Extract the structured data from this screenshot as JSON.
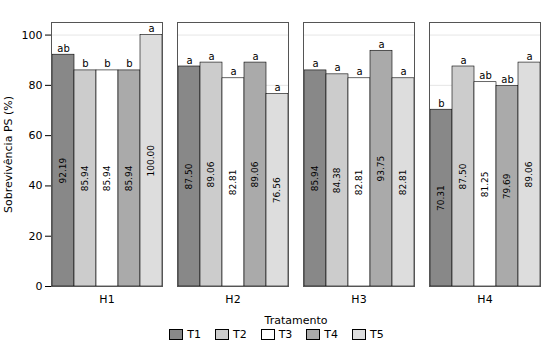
{
  "chart_data": {
    "type": "bar",
    "categories": [
      "H1",
      "H2",
      "H3",
      "H4"
    ],
    "xlabel": "Tratamento",
    "ylabel": "Sobrevivência PS (%)",
    "series": [
      {
        "name": "T1",
        "color": "#888888",
        "values": [
          92.19,
          87.5,
          85.94,
          70.31
        ],
        "value_labels": [
          "92.19",
          "87.50",
          "85.94",
          "70.31"
        ],
        "annotations": [
          "ab",
          "a",
          "a",
          "b"
        ]
      },
      {
        "name": "T2",
        "color": "#cccccc",
        "values": [
          85.94,
          89.06,
          84.38,
          87.5
        ],
        "value_labels": [
          "85.94",
          "89.06",
          "84.38",
          "87.50"
        ],
        "annotations": [
          "b",
          "a",
          "a",
          "a"
        ]
      },
      {
        "name": "T3",
        "color": "#ffffff",
        "values": [
          85.94,
          82.81,
          82.81,
          81.25
        ],
        "value_labels": [
          "85.94",
          "82.81",
          "82.81",
          "81.25"
        ],
        "annotations": [
          "b",
          "a",
          "a",
          "ab"
        ]
      },
      {
        "name": "T4",
        "color": "#aaaaaa",
        "values": [
          85.94,
          89.06,
          93.75,
          79.69
        ],
        "value_labels": [
          "85.94",
          "89.06",
          "93.75",
          "79.69"
        ],
        "annotations": [
          "b",
          "a",
          "a",
          "ab"
        ]
      },
      {
        "name": "T5",
        "color": "#dddddd",
        "values": [
          100.0,
          76.56,
          82.81,
          89.06
        ],
        "value_labels": [
          "100.00",
          "76.56",
          "82.81",
          "89.06"
        ],
        "annotations": [
          "a",
          "a",
          "a",
          "a"
        ]
      }
    ],
    "ylim": [
      0,
      105
    ],
    "yticks": [
      0,
      20,
      40,
      60,
      80,
      100
    ],
    "grid": true,
    "legend": "bottom",
    "data_labels": true
  }
}
